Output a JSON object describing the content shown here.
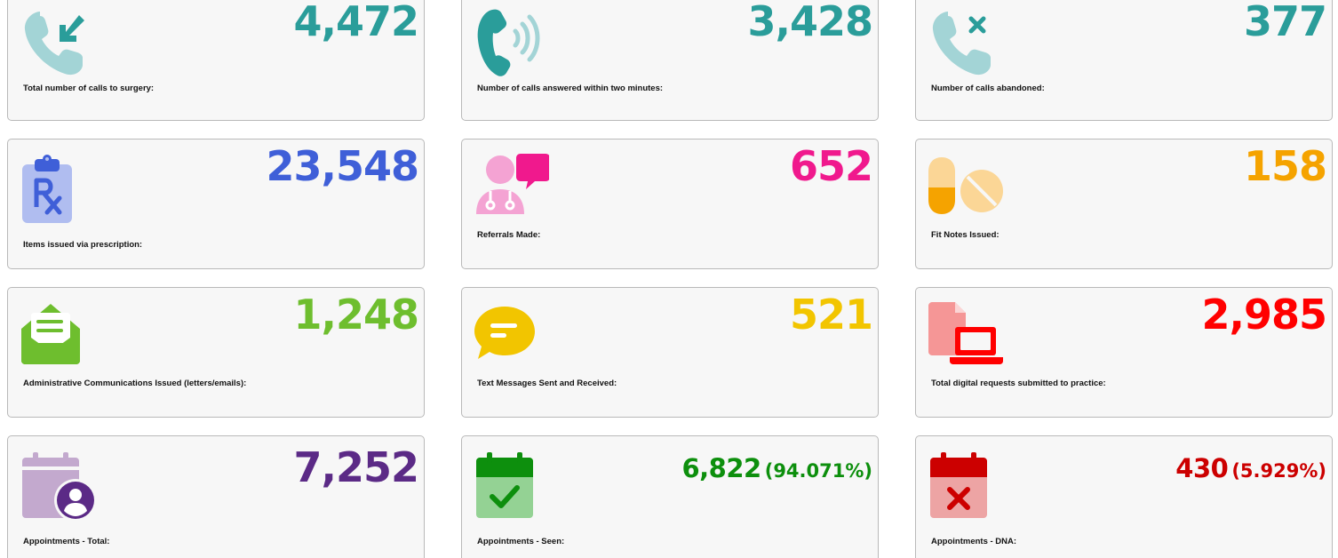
{
  "colors": {
    "teal": "#2a9d9a",
    "teal_light": "#a3d4d6",
    "blue": "#3f5fd8",
    "blue_light": "#b0bdf0",
    "pink": "#f0198d",
    "pink_light": "#f4a3d3",
    "orange": "#f5a300",
    "orange_light": "#fbd696",
    "green_light": "#6ebe2e",
    "yellow": "#f2c500",
    "red": "#ff0000",
    "red_light": "#f59696",
    "purple": "#5b2a86",
    "purple_light": "#c3a9ce",
    "green": "#0d8f0d",
    "green_pale": "#94d294",
    "dark_red": "#cc0000",
    "rose": "#eda4a4"
  },
  "stats": [
    {
      "id": "total-calls",
      "icon": "incoming-call-icon",
      "value": "4,472",
      "label": "Total number of calls to surgery:"
    },
    {
      "id": "calls-answered",
      "icon": "phone-ringing-icon",
      "value": "3,428",
      "label": "Number of calls answered within two minutes:"
    },
    {
      "id": "calls-abandoned",
      "icon": "missed-call-icon",
      "value": "377",
      "label": "Number of calls abandoned:"
    },
    {
      "id": "prescription-items",
      "icon": "prescription-clipboard-icon",
      "value": "23,548",
      "label": "Items issued via prescription:"
    },
    {
      "id": "referrals",
      "icon": "doctor-chat-icon",
      "value": "652",
      "label": "Referrals Made:"
    },
    {
      "id": "fit-notes",
      "icon": "pills-icon",
      "value": "158",
      "label": "Fit Notes Issued:"
    },
    {
      "id": "admin-comms",
      "icon": "envelope-letter-icon",
      "value": "1,248",
      "label": "Administrative Communications Issued (letters/emails):"
    },
    {
      "id": "text-messages",
      "icon": "speech-bubble-icon",
      "value": "521",
      "label": "Text Messages Sent and Received:"
    },
    {
      "id": "digital-requests",
      "icon": "document-laptop-icon",
      "value": "2,985",
      "label": "Total digital requests submitted to practice:"
    },
    {
      "id": "appointments-total",
      "icon": "calendar-user-icon",
      "value": "7,252",
      "label": "Appointments - Total:"
    },
    {
      "id": "appointments-seen",
      "icon": "calendar-check-icon",
      "value": "6,822",
      "pct": "(94.071%)",
      "label": "Appointments - Seen:"
    },
    {
      "id": "appointments-dna",
      "icon": "calendar-cross-icon",
      "value": "430",
      "pct": "(5.929%)",
      "label": "Appointments - DNA:"
    }
  ]
}
